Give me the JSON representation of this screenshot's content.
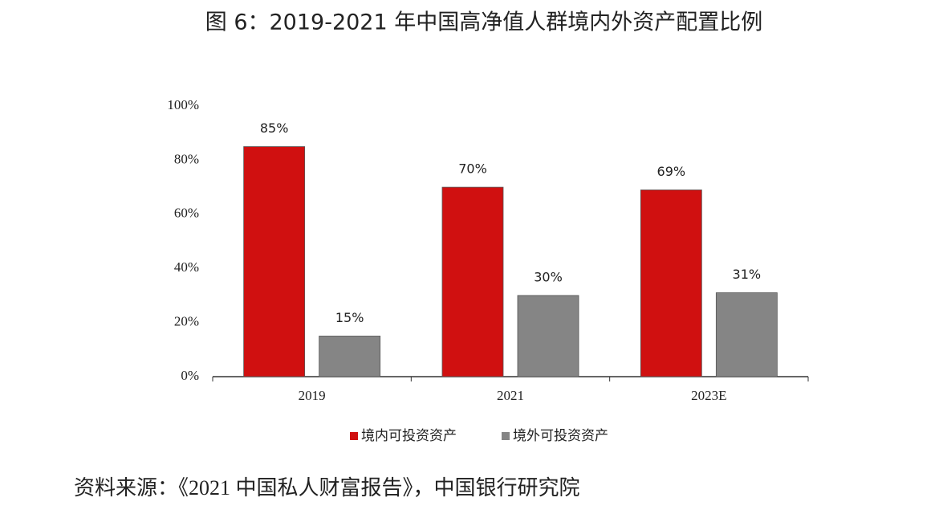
{
  "chart_data": {
    "type": "bar",
    "title": "图 6：2019-2021 年中国高净值人群境内外资产配置比例",
    "categories": [
      "2019",
      "2021",
      "2023E"
    ],
    "series": [
      {
        "name": "境内可投资资产",
        "color": "#d01010",
        "values": [
          85,
          70,
          69
        ],
        "value_labels": [
          "85%",
          "70%",
          "69%"
        ]
      },
      {
        "name": "境外可投资资产",
        "color": "#858585",
        "values": [
          15,
          30,
          31
        ],
        "value_labels": [
          "15%",
          "30%",
          "31%"
        ]
      }
    ],
    "ylim": [
      0,
      100
    ],
    "yticks": [
      {
        "value": 0,
        "label": "0%"
      },
      {
        "value": 20,
        "label": "20%"
      },
      {
        "value": 40,
        "label": "40%"
      },
      {
        "value": 60,
        "label": "60%"
      },
      {
        "value": 80,
        "label": "80%"
      },
      {
        "value": 100,
        "label": "100%"
      }
    ],
    "grid": false,
    "legend": "bottom",
    "source": "资料来源：《2021 中国私人财富报告》，中国银行研究院"
  }
}
